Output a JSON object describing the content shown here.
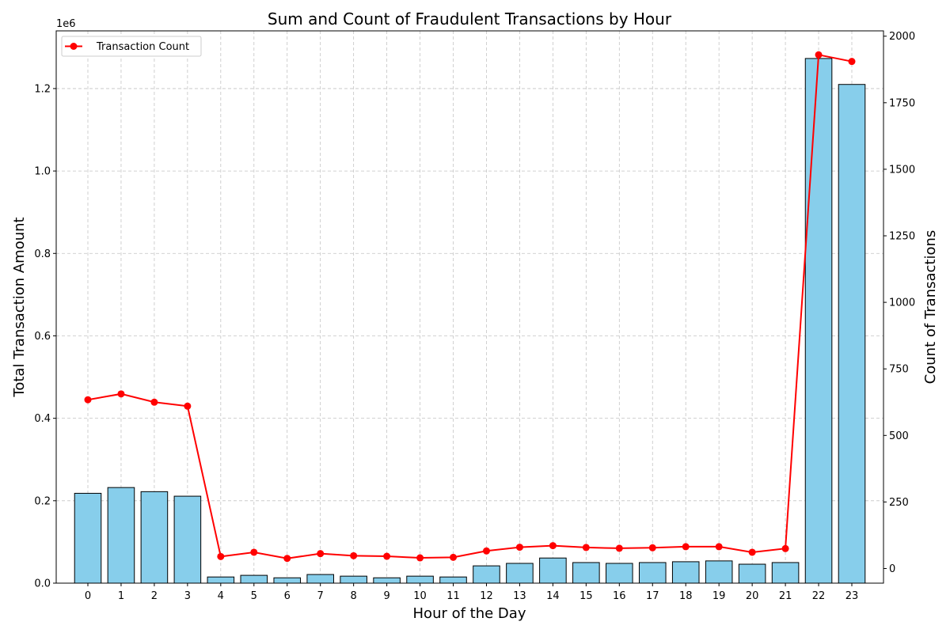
{
  "chart_data": {
    "type": "bar",
    "title": "Sum and Count of Fraudulent Transactions by Hour",
    "xlabel": "Hour of the Day",
    "ylabel_left": "Total Transaction Amount",
    "ylabel_right": "Count of Transactions",
    "offset_text_left": "1e6",
    "categories": [
      "0",
      "1",
      "2",
      "3",
      "4",
      "5",
      "6",
      "7",
      "8",
      "9",
      "10",
      "11",
      "12",
      "13",
      "14",
      "15",
      "16",
      "17",
      "18",
      "19",
      "20",
      "21",
      "22",
      "23"
    ],
    "ylim_left": [
      0,
      1340000
    ],
    "ylim_right": [
      -55,
      2020
    ],
    "left_ticks": [
      {
        "value": 0,
        "label": "0.0"
      },
      {
        "value": 200000,
        "label": "0.2"
      },
      {
        "value": 400000,
        "label": "0.4"
      },
      {
        "value": 600000,
        "label": "0.6"
      },
      {
        "value": 800000,
        "label": "0.8"
      },
      {
        "value": 1000000,
        "label": "1.0"
      },
      {
        "value": 1200000,
        "label": "1.2"
      }
    ],
    "right_ticks": [
      0,
      250,
      500,
      750,
      1000,
      1250,
      1500,
      1750,
      2000
    ],
    "grid": true,
    "legend_position": "top-left",
    "series": [
      {
        "type": "bar",
        "axis": "left",
        "color": "#87ceeb",
        "values": [
          218000,
          232000,
          222000,
          211000,
          15000,
          19000,
          13000,
          21000,
          17000,
          13000,
          17000,
          15000,
          42000,
          48000,
          61000,
          50000,
          48000,
          50000,
          52000,
          54000,
          46000,
          50000,
          1273000,
          1210000
        ]
      },
      {
        "type": "line",
        "axis": "right",
        "name": "Transaction Count",
        "color": "#ff0000",
        "marker": "circle",
        "values": [
          634,
          656,
          625,
          610,
          45,
          61,
          38,
          56,
          48,
          46,
          40,
          42,
          66,
          80,
          86,
          79,
          76,
          78,
          82,
          82,
          61,
          75,
          1930,
          1905
        ]
      }
    ]
  }
}
